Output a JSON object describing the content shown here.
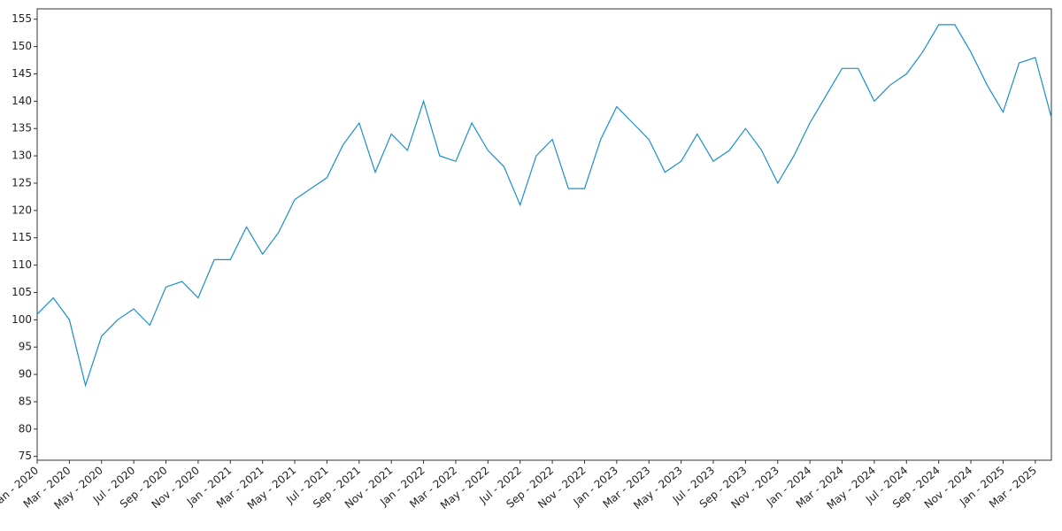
{
  "chart_data": {
    "type": "line",
    "x": [
      "2020-01",
      "2020-02",
      "2020-03",
      "2020-04",
      "2020-05",
      "2020-06",
      "2020-07",
      "2020-08",
      "2020-09",
      "2020-10",
      "2020-11",
      "2020-12",
      "2021-01",
      "2021-02",
      "2021-03",
      "2021-04",
      "2021-05",
      "2021-06",
      "2021-07",
      "2021-08",
      "2021-09",
      "2021-10",
      "2021-11",
      "2021-12",
      "2022-01",
      "2022-02",
      "2022-03",
      "2022-04",
      "2022-05",
      "2022-06",
      "2022-07",
      "2022-08",
      "2022-09",
      "2022-10",
      "2022-11",
      "2022-12",
      "2023-01",
      "2023-02",
      "2023-03",
      "2023-04",
      "2023-05",
      "2023-06",
      "2023-07",
      "2023-08",
      "2023-09",
      "2023-10",
      "2023-11",
      "2023-12",
      "2024-01",
      "2024-02",
      "2024-03",
      "2024-04",
      "2024-05",
      "2024-06",
      "2024-07",
      "2024-08",
      "2024-09",
      "2024-10",
      "2024-11",
      "2024-12",
      "2025-01",
      "2025-02",
      "2025-03",
      "2025-04"
    ],
    "series": [
      {
        "color": "#1a8fcc",
        "values": [
          101,
          104,
          100,
          88,
          97,
          100,
          102,
          99,
          106,
          107,
          104,
          111,
          111,
          117,
          112,
          116,
          122,
          124,
          126,
          132,
          136,
          127,
          134,
          131,
          140,
          130,
          129,
          136,
          131,
          128,
          121,
          130,
          133,
          124,
          124,
          133,
          139,
          136,
          133,
          127,
          129,
          134,
          129,
          131,
          135,
          131,
          125,
          130,
          136,
          141,
          146,
          146,
          140,
          143,
          145,
          149,
          154,
          154,
          149,
          143,
          138,
          147,
          148,
          137
        ]
      }
    ],
    "xlim": [
      "2020-01",
      "2025-04"
    ],
    "xticks": [
      {
        "value": "2020-01",
        "label": "Jan - 2020"
      },
      {
        "value": "2020-03",
        "label": "Mar - 2020"
      },
      {
        "value": "2020-05",
        "label": "May - 2020"
      },
      {
        "value": "2020-07",
        "label": "Jul - 2020"
      },
      {
        "value": "2020-09",
        "label": "Sep - 2020"
      },
      {
        "value": "2020-11",
        "label": "Nov - 2020"
      },
      {
        "value": "2021-01",
        "label": "Jan - 2021"
      },
      {
        "value": "2021-03",
        "label": "Mar - 2021"
      },
      {
        "value": "2021-05",
        "label": "May - 2021"
      },
      {
        "value": "2021-07",
        "label": "Jul - 2021"
      },
      {
        "value": "2021-09",
        "label": "Sep - 2021"
      },
      {
        "value": "2021-11",
        "label": "Nov - 2021"
      },
      {
        "value": "2022-01",
        "label": "Jan - 2022"
      },
      {
        "value": "2022-03",
        "label": "Mar - 2022"
      },
      {
        "value": "2022-05",
        "label": "May - 2022"
      },
      {
        "value": "2022-07",
        "label": "Jul - 2022"
      },
      {
        "value": "2022-09",
        "label": "Sep - 2022"
      },
      {
        "value": "2022-11",
        "label": "Nov - 2022"
      },
      {
        "value": "2023-01",
        "label": "Jan - 2023"
      },
      {
        "value": "2023-03",
        "label": "Mar - 2023"
      },
      {
        "value": "2023-05",
        "label": "May - 2023"
      },
      {
        "value": "2023-07",
        "label": "Jul - 2023"
      },
      {
        "value": "2023-09",
        "label": "Sep - 2023"
      },
      {
        "value": "2023-11",
        "label": "Nov - 2023"
      },
      {
        "value": "2024-01",
        "label": "Jan - 2024"
      },
      {
        "value": "2024-03",
        "label": "Mar - 2024"
      },
      {
        "value": "2024-05",
        "label": "May - 2024"
      },
      {
        "value": "2024-07",
        "label": "Jul - 2024"
      },
      {
        "value": "2024-09",
        "label": "Sep - 2024"
      },
      {
        "value": "2024-11",
        "label": "Nov - 2024"
      },
      {
        "value": "2025-01",
        "label": "Jan - 2025"
      },
      {
        "value": "2025-03",
        "label": "Mar - 2025"
      }
    ],
    "ylim": [
      74.3,
      156.9
    ],
    "yticks": [
      75,
      80,
      85,
      90,
      95,
      100,
      105,
      110,
      115,
      120,
      125,
      130,
      135,
      140,
      145,
      150,
      155
    ]
  }
}
